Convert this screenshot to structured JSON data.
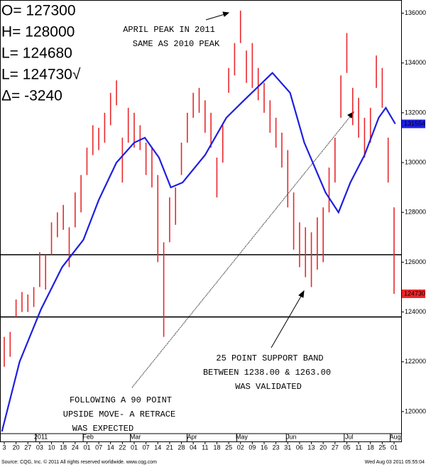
{
  "chart_data": {
    "type": "ohlc",
    "legend_lines": [
      "O= 127300",
      "H= 128000",
      "L= 124680",
      "L= 124730√",
      "Δ=   -3240"
    ],
    "annotations": [
      [
        "APRIL PEAK IN 2011",
        "SAME AS 2010 PEAK"
      ],
      [
        "25 POINT SUPPORT BAND",
        "BETWEEN 1238.00 & 1263.00",
        "WAS VALIDATED"
      ],
      [
        "FOLLOWING A 90 POINT",
        "UPSIDE MOVE- A RETRACE",
        "WAS EXPECTED"
      ]
    ],
    "footer_left": "Source: CQG, Inc. © 2011 All rights reserved worldwide. www.cqg.com",
    "footer_right": "Wed Aug 03 2011 05:55:04",
    "ylim": [
      118800,
      136500
    ],
    "yticks": [
      120000,
      122000,
      124000,
      126000,
      128000,
      130000,
      132000,
      134000,
      136000
    ],
    "xlim": [
      -0.3,
      33.6
    ],
    "xticks": [
      {
        "value": 0,
        "label": "3"
      },
      {
        "value": 1,
        "label": "20"
      },
      {
        "value": 2,
        "label": "27"
      },
      {
        "value": 3,
        "label": "03"
      },
      {
        "value": 4,
        "label": "10"
      },
      {
        "value": 5,
        "label": "18"
      },
      {
        "value": 6,
        "label": "24"
      },
      {
        "value": 7,
        "label": "01"
      },
      {
        "value": 8,
        "label": "07"
      },
      {
        "value": 9,
        "label": "14"
      },
      {
        "value": 10,
        "label": "22"
      },
      {
        "value": 11,
        "label": "01"
      },
      {
        "value": 12,
        "label": "07"
      },
      {
        "value": 13,
        "label": "14"
      },
      {
        "value": 14,
        "label": "21"
      },
      {
        "value": 15,
        "label": "28"
      },
      {
        "value": 16,
        "label": "04"
      },
      {
        "value": 17,
        "label": "11"
      },
      {
        "value": 18,
        "label": "18"
      },
      {
        "value": 19,
        "label": "25"
      },
      {
        "value": 20,
        "label": "02"
      },
      {
        "value": 21,
        "label": "09"
      },
      {
        "value": 22,
        "label": "16"
      },
      {
        "value": 23,
        "label": "23"
      },
      {
        "value": 24,
        "label": "31"
      },
      {
        "value": 25,
        "label": "06"
      },
      {
        "value": 26,
        "label": "13"
      },
      {
        "value": 27,
        "label": "20"
      },
      {
        "value": 28,
        "label": "27"
      },
      {
        "value": 29,
        "label": "05"
      },
      {
        "value": 30,
        "label": "11"
      },
      {
        "value": 31,
        "label": "18"
      },
      {
        "value": 32,
        "label": "25"
      },
      {
        "value": 33,
        "label": "01"
      }
    ],
    "month_ticks": [
      {
        "value": 3.1,
        "label": "2011"
      },
      {
        "value": 7.1,
        "label": "Feb"
      },
      {
        "value": 11.1,
        "label": "Mar"
      },
      {
        "value": 15.9,
        "label": "Apr"
      },
      {
        "value": 20.1,
        "label": "May"
      },
      {
        "value": 24.3,
        "label": "Jun"
      },
      {
        "value": 29.2,
        "label": "Jul"
      },
      {
        "value": 33.1,
        "label": "Aug"
      }
    ],
    "bars": {
      "color": "#e8282c",
      "x": [
        0,
        0.5,
        1,
        1.5,
        2,
        2.5,
        3,
        3.5,
        4,
        4.5,
        5,
        5.5,
        6,
        6.5,
        7,
        7.5,
        8,
        8.5,
        9,
        9.5,
        10,
        10.5,
        11,
        11.5,
        12,
        12.5,
        13,
        13.5,
        14,
        14.5,
        15,
        15.5,
        16,
        16.5,
        17,
        17.5,
        18,
        18.5,
        19,
        19.5,
        20,
        20.5,
        21,
        21.5,
        22,
        22.5,
        23,
        23.5,
        24,
        24.5,
        25,
        25.5,
        26,
        26.5,
        27,
        27.5,
        28,
        28.5,
        29,
        29.5,
        30,
        30.5,
        31,
        31.5,
        32,
        32.5,
        33
      ],
      "high": [
        123000,
        123200,
        124500,
        124800,
        124700,
        125000,
        126400,
        126300,
        127600,
        128000,
        128300,
        127400,
        128800,
        129500,
        130600,
        131500,
        131400,
        132000,
        132800,
        133300,
        131000,
        132200,
        132000,
        131500,
        130800,
        130600,
        129500,
        126800,
        128600,
        129000,
        130800,
        132000,
        132800,
        133000,
        132500,
        132000,
        130200,
        131500,
        133800,
        134800,
        136100,
        134500,
        134800,
        133800,
        133200,
        132500,
        131800,
        131200,
        130500,
        128800,
        127600,
        127400,
        127200,
        127800,
        128200,
        129800,
        131000,
        133500,
        135200,
        133000,
        132600,
        131800,
        132200,
        134300,
        133800,
        131000,
        128200
      ],
      "low": [
        121800,
        122200,
        123800,
        124000,
        124000,
        124200,
        125000,
        124900,
        126300,
        127000,
        127300,
        125800,
        127400,
        128000,
        129500,
        130300,
        130500,
        130800,
        131500,
        132300,
        129200,
        130800,
        130600,
        130500,
        129500,
        129000,
        126000,
        123000,
        126800,
        127500,
        129500,
        130800,
        131800,
        132000,
        131200,
        130600,
        128600,
        130000,
        132800,
        133500,
        134800,
        133200,
        133000,
        132500,
        132000,
        131200,
        130600,
        129800,
        128200,
        126500,
        125800,
        125400,
        125000,
        125700,
        126000,
        128000,
        129200,
        131800,
        133600,
        131500,
        131000,
        130200,
        130800,
        133000,
        132200,
        129200,
        124730
      ]
    },
    "line": {
      "color": "#1f1fe0",
      "x": [
        -0.2,
        1.3,
        3.1,
        4.9,
        6.7,
        8,
        9.5,
        11,
        11.9,
        13.1,
        14.1,
        15.1,
        17,
        18.8,
        20.3,
        22.7,
        24.2,
        25.4,
        27.2,
        28.3,
        29.3,
        30.5,
        31.7,
        32.3,
        33.1
      ],
      "values": [
        119200,
        122000,
        124100,
        125800,
        126900,
        128500,
        130000,
        130800,
        131000,
        130200,
        129000,
        129200,
        130300,
        131800,
        132500,
        133600,
        132800,
        130800,
        128800,
        128000,
        129200,
        130300,
        131800,
        132200,
        131554
      ]
    },
    "hlines": [
      126300,
      123800
    ],
    "price_flags": [
      {
        "value": 131554,
        "color": "#1f1fe0"
      },
      {
        "value": 124730,
        "color": "#e8282c"
      }
    ]
  }
}
